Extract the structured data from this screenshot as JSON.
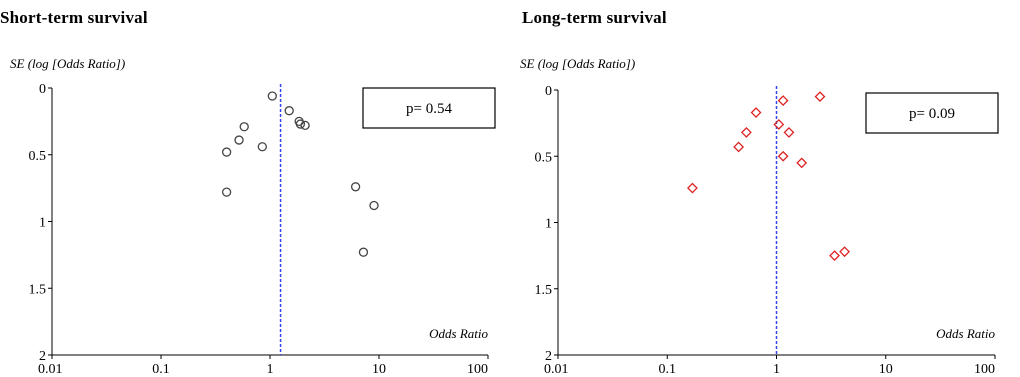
{
  "chart_data": [
    {
      "type": "scatter",
      "title": "Short-term  survival",
      "ylabel": "SE (log [Odds Ratio])",
      "xlabel": "Odds Ratio",
      "x_scale": "log",
      "xlim": [
        0.01,
        100
      ],
      "ylim": [
        0,
        2
      ],
      "y_inverted": true,
      "x_ticks": [
        "0.01",
        "0.1",
        "1",
        "10",
        "100"
      ],
      "y_ticks": [
        "0",
        "0.5",
        "1",
        "1.5",
        "2"
      ],
      "reference_line_x": 1.25,
      "annotation": "p= 0.54",
      "marker": "circle",
      "marker_color": "#444444",
      "reference_line_color": "#3344ee",
      "points": [
        {
          "x": 1.05,
          "y": 0.06
        },
        {
          "x": 1.5,
          "y": 0.17
        },
        {
          "x": 1.85,
          "y": 0.25
        },
        {
          "x": 1.9,
          "y": 0.27
        },
        {
          "x": 2.1,
          "y": 0.28
        },
        {
          "x": 0.58,
          "y": 0.29
        },
        {
          "x": 0.52,
          "y": 0.39
        },
        {
          "x": 0.85,
          "y": 0.44
        },
        {
          "x": 0.4,
          "y": 0.48
        },
        {
          "x": 0.4,
          "y": 0.78
        },
        {
          "x": 6.1,
          "y": 0.74
        },
        {
          "x": 9.0,
          "y": 0.88
        },
        {
          "x": 7.2,
          "y": 1.23
        }
      ]
    },
    {
      "type": "scatter",
      "title": "Long-term  survival",
      "ylabel": "SE (log [Odds Ratio])",
      "xlabel": "Odds Ratio",
      "x_scale": "log",
      "xlim": [
        0.01,
        100
      ],
      "ylim": [
        0,
        2
      ],
      "y_inverted": true,
      "x_ticks": [
        "0.01",
        "0.1",
        "1",
        "10",
        "100"
      ],
      "y_ticks": [
        "0",
        "0.5",
        "1",
        "1.5",
        "2"
      ],
      "reference_line_x": 1.0,
      "annotation": "p= 0.09",
      "marker": "diamond",
      "marker_color": "#dd2222",
      "reference_line_color": "#3344ee",
      "points": [
        {
          "x": 2.5,
          "y": 0.05
        },
        {
          "x": 1.15,
          "y": 0.08
        },
        {
          "x": 0.65,
          "y": 0.17
        },
        {
          "x": 1.05,
          "y": 0.26
        },
        {
          "x": 1.3,
          "y": 0.32
        },
        {
          "x": 0.53,
          "y": 0.32
        },
        {
          "x": 0.45,
          "y": 0.43
        },
        {
          "x": 1.15,
          "y": 0.5
        },
        {
          "x": 1.7,
          "y": 0.55
        },
        {
          "x": 0.17,
          "y": 0.74
        },
        {
          "x": 3.4,
          "y": 1.25
        },
        {
          "x": 4.2,
          "y": 1.22
        }
      ]
    }
  ]
}
